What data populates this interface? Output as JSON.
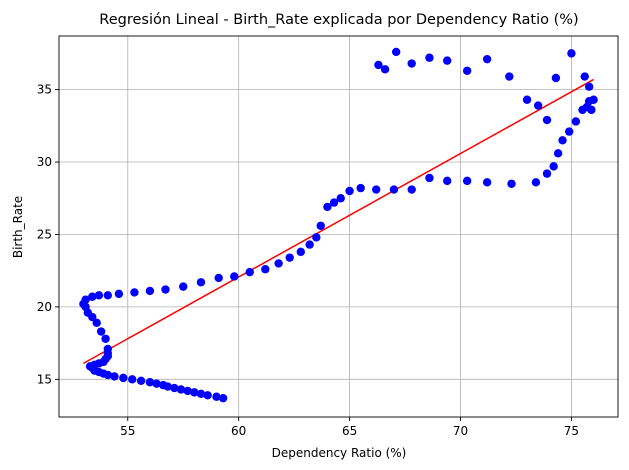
{
  "chart_data": {
    "type": "scatter",
    "title": "Regresión Lineal - Birth_Rate explicada por Dependency Ratio (%)",
    "xlabel": "Dependency Ratio (%)",
    "ylabel": "Birth_Rate",
    "xlim": [
      51.9,
      77.1
    ],
    "ylim": [
      12.4,
      38.7
    ],
    "xticks": [
      55,
      60,
      65,
      70,
      75
    ],
    "yticks": [
      15,
      20,
      25,
      30,
      35
    ],
    "grid": true,
    "point_color": "#0000ff",
    "line_color": "#ff0000",
    "regression_line": {
      "x": [
        53.0,
        76.0
      ],
      "y": [
        16.1,
        35.7
      ]
    },
    "points": [
      [
        59.3,
        13.7
      ],
      [
        59.0,
        13.8
      ],
      [
        58.6,
        13.9
      ],
      [
        58.3,
        14.0
      ],
      [
        58.0,
        14.1
      ],
      [
        57.7,
        14.2
      ],
      [
        57.4,
        14.3
      ],
      [
        57.1,
        14.4
      ],
      [
        56.8,
        14.5
      ],
      [
        56.6,
        14.6
      ],
      [
        56.3,
        14.7
      ],
      [
        56.0,
        14.8
      ],
      [
        55.6,
        14.9
      ],
      [
        55.2,
        15.0
      ],
      [
        54.8,
        15.1
      ],
      [
        54.4,
        15.2
      ],
      [
        54.1,
        15.3
      ],
      [
        53.9,
        15.4
      ],
      [
        53.7,
        15.5
      ],
      [
        53.5,
        15.6
      ],
      [
        53.4,
        15.8
      ],
      [
        53.3,
        15.9
      ],
      [
        53.5,
        16.0
      ],
      [
        53.7,
        16.1
      ],
      [
        53.9,
        16.2
      ],
      [
        54.0,
        16.4
      ],
      [
        54.1,
        16.6
      ],
      [
        54.1,
        16.8
      ],
      [
        54.1,
        17.1
      ],
      [
        54.0,
        17.8
      ],
      [
        53.8,
        18.3
      ],
      [
        53.6,
        18.9
      ],
      [
        53.4,
        19.3
      ],
      [
        53.2,
        19.6
      ],
      [
        53.1,
        20.0
      ],
      [
        53.0,
        20.2
      ],
      [
        53.1,
        20.5
      ],
      [
        53.4,
        20.7
      ],
      [
        53.7,
        20.8
      ],
      [
        54.1,
        20.8
      ],
      [
        54.6,
        20.9
      ],
      [
        55.3,
        21.0
      ],
      [
        56.0,
        21.1
      ],
      [
        56.7,
        21.2
      ],
      [
        57.5,
        21.4
      ],
      [
        58.3,
        21.7
      ],
      [
        59.1,
        22.0
      ],
      [
        59.8,
        22.1
      ],
      [
        60.5,
        22.4
      ],
      [
        61.2,
        22.6
      ],
      [
        61.8,
        23.0
      ],
      [
        62.3,
        23.4
      ],
      [
        62.8,
        23.8
      ],
      [
        63.2,
        24.3
      ],
      [
        63.5,
        24.8
      ],
      [
        63.7,
        25.6
      ],
      [
        64.0,
        26.9
      ],
      [
        64.3,
        27.2
      ],
      [
        64.6,
        27.5
      ],
      [
        65.0,
        28.0
      ],
      [
        65.5,
        28.2
      ],
      [
        66.2,
        28.1
      ],
      [
        67.0,
        28.1
      ],
      [
        67.8,
        28.1
      ],
      [
        68.6,
        28.9
      ],
      [
        69.4,
        28.7
      ],
      [
        70.3,
        28.7
      ],
      [
        71.2,
        28.6
      ],
      [
        72.3,
        28.5
      ],
      [
        73.4,
        28.6
      ],
      [
        73.9,
        29.2
      ],
      [
        74.2,
        29.7
      ],
      [
        74.4,
        30.6
      ],
      [
        74.6,
        31.5
      ],
      [
        74.9,
        32.1
      ],
      [
        75.2,
        32.8
      ],
      [
        75.5,
        33.6
      ],
      [
        75.7,
        33.8
      ],
      [
        75.8,
        34.2
      ],
      [
        76.0,
        34.3
      ],
      [
        75.9,
        33.6
      ],
      [
        75.8,
        35.2
      ],
      [
        75.6,
        35.9
      ],
      [
        75.0,
        37.5
      ],
      [
        74.3,
        35.8
      ],
      [
        73.9,
        32.9
      ],
      [
        73.5,
        33.9
      ],
      [
        73.0,
        34.3
      ],
      [
        72.2,
        35.9
      ],
      [
        71.2,
        37.1
      ],
      [
        70.3,
        36.3
      ],
      [
        69.4,
        37.0
      ],
      [
        68.6,
        37.2
      ],
      [
        67.8,
        36.8
      ],
      [
        67.1,
        37.6
      ],
      [
        66.6,
        36.4
      ],
      [
        66.3,
        36.7
      ]
    ]
  }
}
